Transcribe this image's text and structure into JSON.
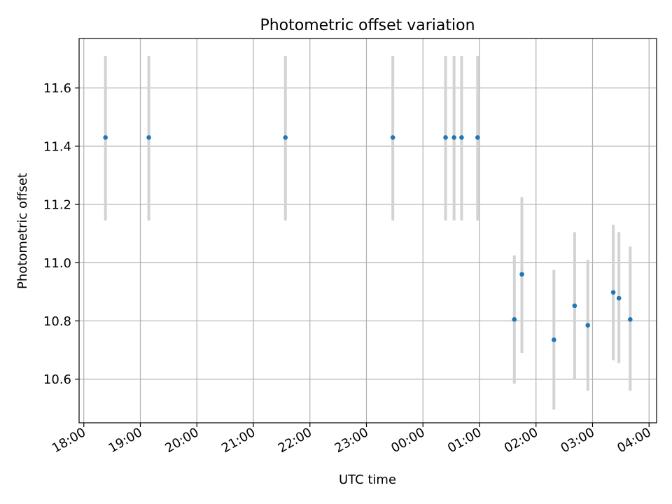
{
  "chart_data": {
    "type": "scatter",
    "title": "Photometric offset variation",
    "xlabel": "UTC time",
    "ylabel": "Photometric offset",
    "x_ticks": [
      "18:00",
      "19:00",
      "20:00",
      "21:00",
      "22:00",
      "23:00",
      "00:00",
      "01:00",
      "02:00",
      "03:00",
      "04:00"
    ],
    "y_ticks": [
      "10.6",
      "10.8",
      "11.0",
      "11.2",
      "11.4",
      "11.6"
    ],
    "x_range": [
      "17:55",
      "04:08"
    ],
    "y_range": [
      10.45,
      11.77
    ],
    "grid": true,
    "points": [
      {
        "x": "18:23",
        "y": 11.43,
        "err_low": 11.145,
        "err_high": 11.71
      },
      {
        "x": "19:09",
        "y": 11.43,
        "err_low": 11.145,
        "err_high": 11.71
      },
      {
        "x": "21:34",
        "y": 11.43,
        "err_low": 11.145,
        "err_high": 11.71
      },
      {
        "x": "23:28",
        "y": 11.43,
        "err_low": 11.145,
        "err_high": 11.71
      },
      {
        "x": "00:24",
        "y": 11.43,
        "err_low": 11.145,
        "err_high": 11.71
      },
      {
        "x": "00:33",
        "y": 11.43,
        "err_low": 11.145,
        "err_high": 11.71
      },
      {
        "x": "00:41",
        "y": 11.43,
        "err_low": 11.145,
        "err_high": 11.71
      },
      {
        "x": "00:58",
        "y": 11.43,
        "err_low": 11.145,
        "err_high": 11.71
      },
      {
        "x": "01:37",
        "y": 10.805,
        "err_low": 10.585,
        "err_high": 11.025
      },
      {
        "x": "01:45",
        "y": 10.96,
        "err_low": 10.69,
        "err_high": 11.225
      },
      {
        "x": "02:19",
        "y": 10.735,
        "err_low": 10.495,
        "err_high": 10.975
      },
      {
        "x": "02:41",
        "y": 10.852,
        "err_low": 10.6,
        "err_high": 11.105
      },
      {
        "x": "02:55",
        "y": 10.785,
        "err_low": 10.56,
        "err_high": 11.01
      },
      {
        "x": "03:22",
        "y": 10.898,
        "err_low": 10.665,
        "err_high": 11.13
      },
      {
        "x": "03:28",
        "y": 10.878,
        "err_low": 10.655,
        "err_high": 11.105
      },
      {
        "x": "03:40",
        "y": 10.805,
        "err_low": 10.56,
        "err_high": 11.055
      }
    ],
    "colors": {
      "point": "#1f77b4",
      "errorbar": "#d3d3d3",
      "grid": "#b0b0b0",
      "axis": "#000000"
    }
  }
}
